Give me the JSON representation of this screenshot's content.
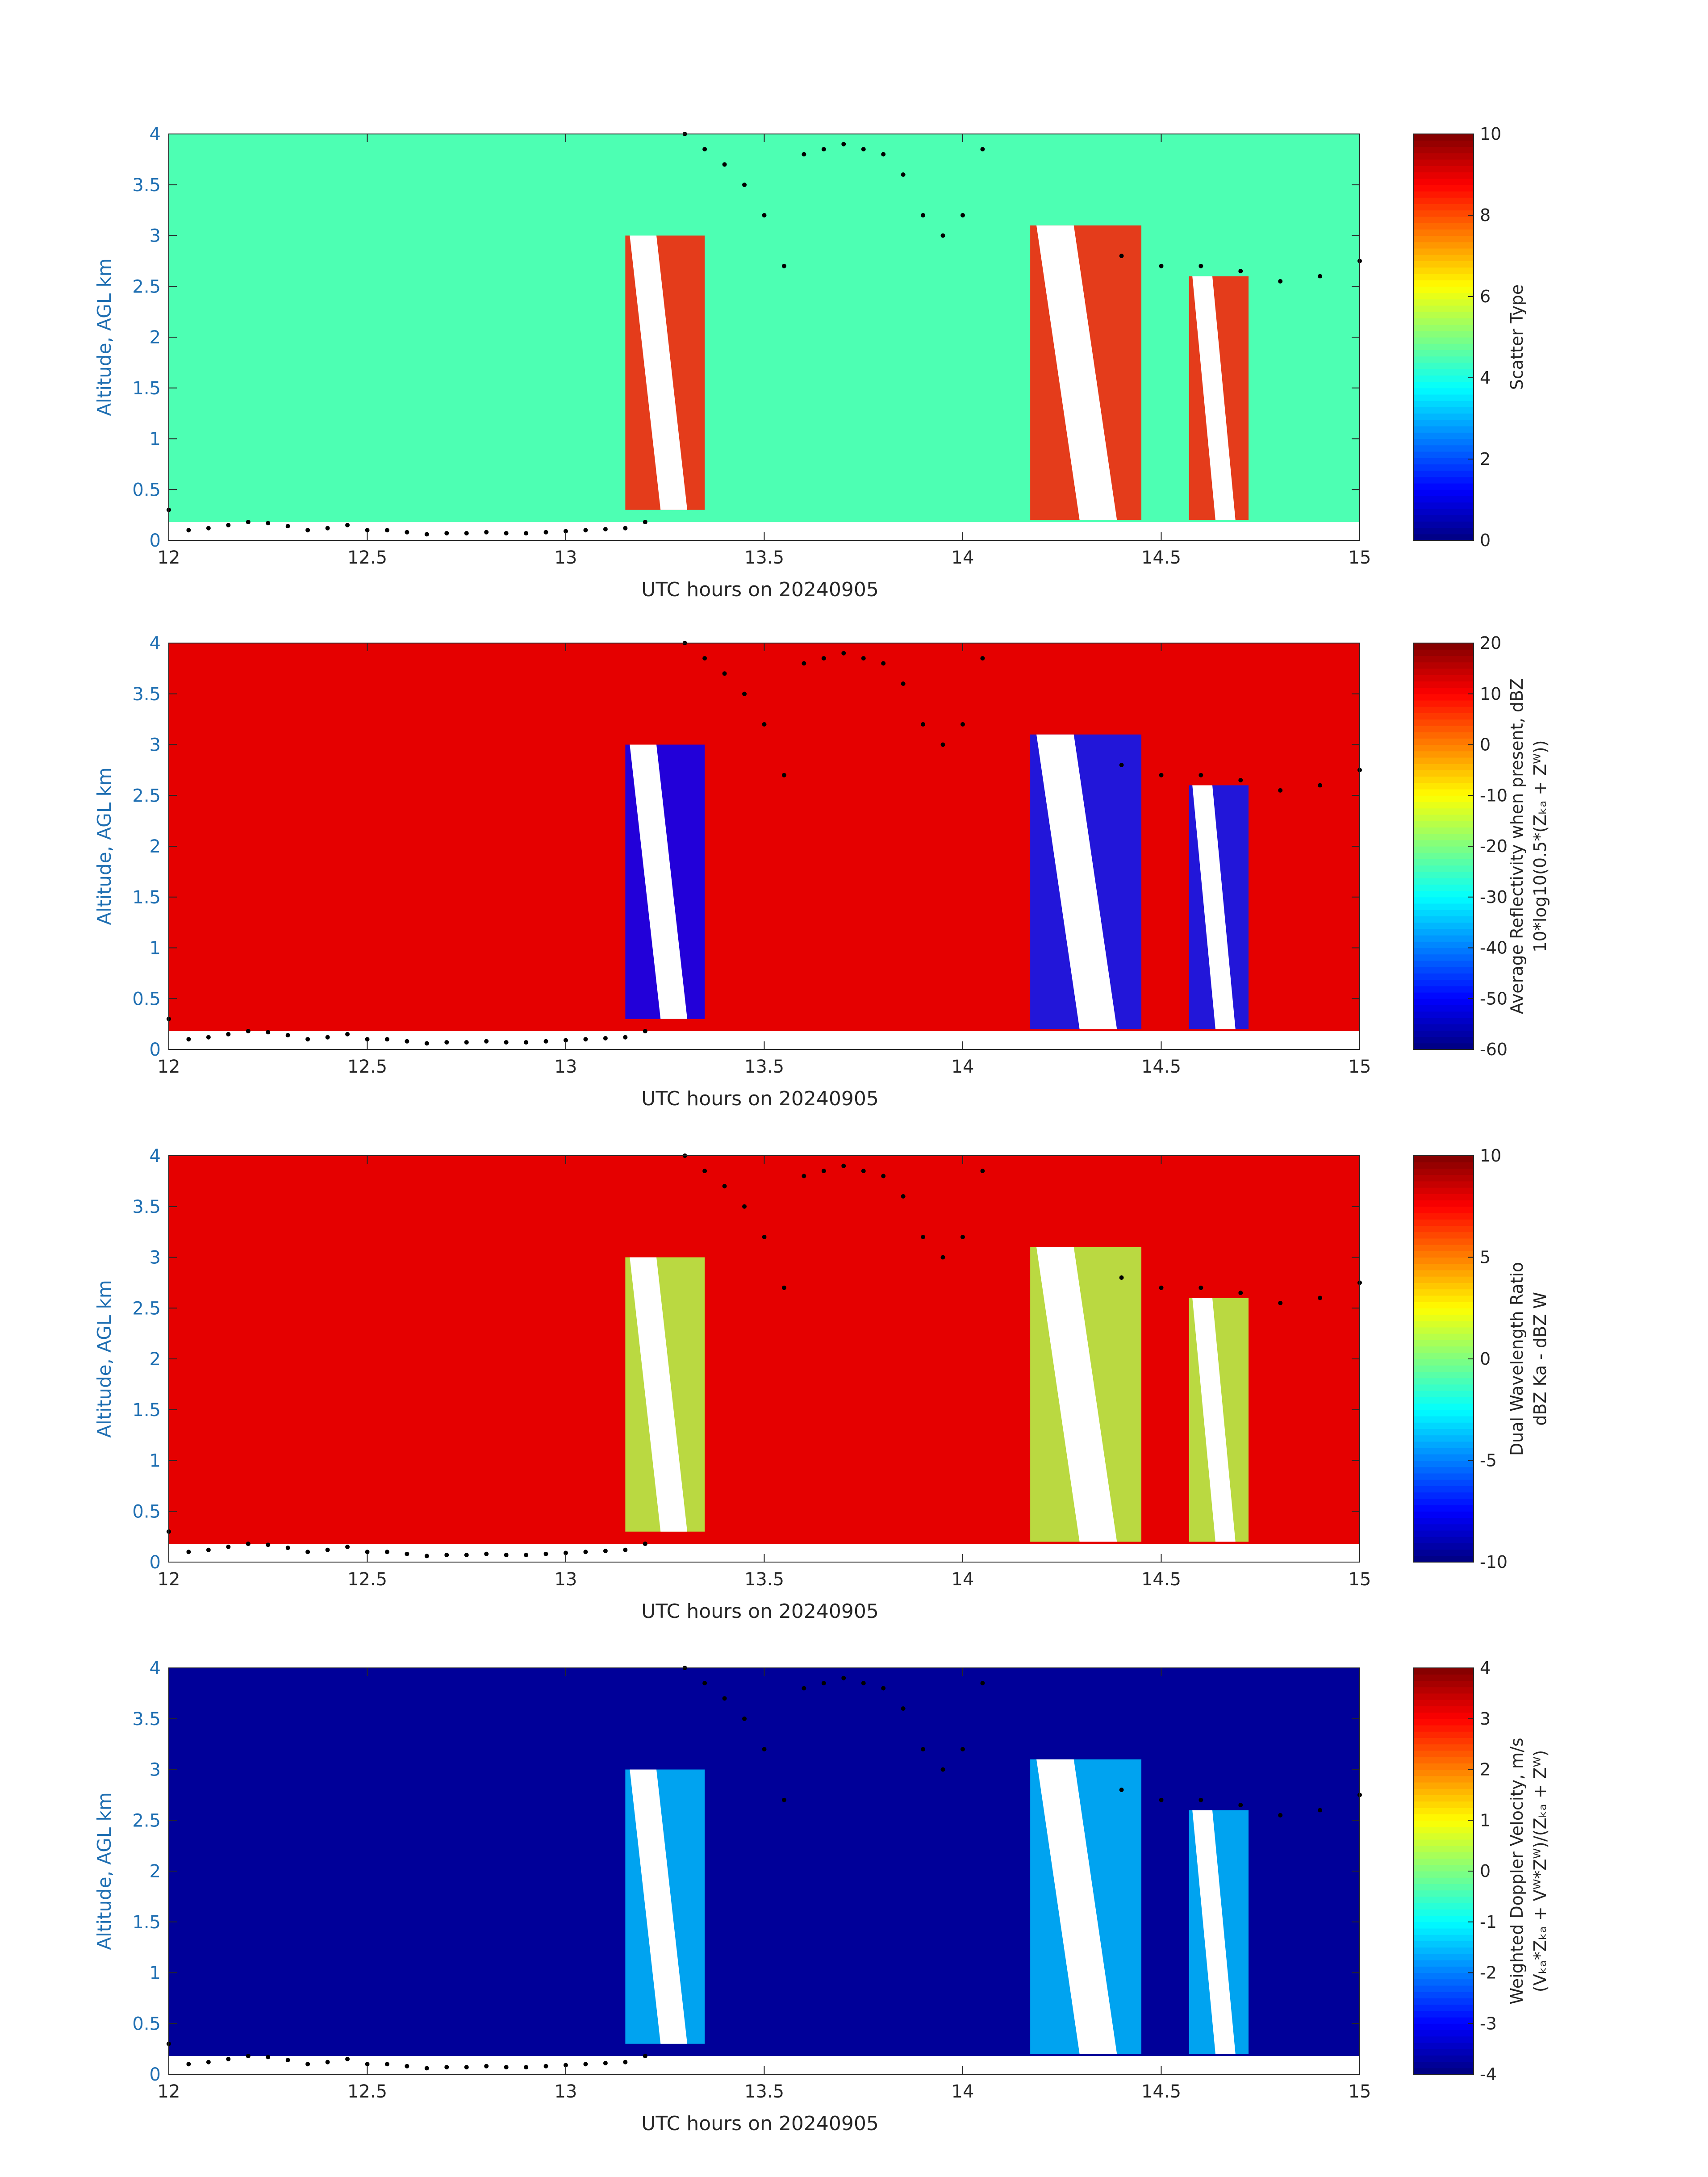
{
  "chart_data": [
    {
      "type": "heatmap",
      "field": "scatter_type",
      "xlabel": "UTC hours on 20240905",
      "ylabel": "Altitude, AGL km",
      "xlim": [
        12,
        15
      ],
      "ylim": [
        0,
        4
      ],
      "xticks": [
        "12",
        "12.5",
        "13",
        "13.5",
        "14",
        "14.5",
        "15"
      ],
      "yticks": [
        "0",
        "0.5",
        "1",
        "1.5",
        "2",
        "2.5",
        "3",
        "3.5",
        "4"
      ],
      "colorbar": {
        "label_lines": [
          "Scatter Type"
        ],
        "range": [
          0,
          10
        ],
        "ticks": [
          "0",
          "2",
          "4",
          "6",
          "8",
          "10"
        ]
      },
      "background_value": 4.5,
      "features": [
        {
          "kind": "cloud",
          "x0": 13.15,
          "x1": 13.35,
          "ybot": 0.3,
          "ytop": 3.0,
          "value": 8.5
        },
        {
          "kind": "cloud",
          "x0": 14.17,
          "x1": 14.45,
          "ybot": 0.2,
          "ytop": 3.1,
          "value": 8.5
        },
        {
          "kind": "cloud",
          "x0": 14.57,
          "x1": 14.72,
          "ybot": 0.2,
          "ytop": 2.6,
          "value": 8.5
        }
      ]
    },
    {
      "type": "heatmap",
      "field": "average_reflectivity",
      "xlabel": "UTC hours on 20240905",
      "ylabel": "Altitude, AGL km",
      "xlim": [
        12,
        15
      ],
      "ylim": [
        0,
        4
      ],
      "xticks": [
        "12",
        "12.5",
        "13",
        "13.5",
        "14",
        "14.5",
        "15"
      ],
      "yticks": [
        "0",
        "0.5",
        "1",
        "1.5",
        "2",
        "2.5",
        "3",
        "3.5",
        "4"
      ],
      "colorbar": {
        "label_lines": [
          "Average Reflectivity when present, dBZ",
          "10*log10(0.5*(Zₖₐ + Zᵂ))"
        ],
        "range": [
          -60,
          20
        ],
        "ticks": [
          "-60",
          "-50",
          "-40",
          "-30",
          "-20",
          "-10",
          "0",
          "10",
          "20"
        ]
      },
      "background_value": 12,
      "features": [
        {
          "kind": "cloud",
          "x0": 13.15,
          "x1": 13.35,
          "ybot": 0.3,
          "ytop": 3.0,
          "value": -50
        },
        {
          "kind": "cloud",
          "x0": 14.17,
          "x1": 14.45,
          "ybot": 0.2,
          "ytop": 3.1,
          "value": -48
        },
        {
          "kind": "cloud",
          "x0": 14.57,
          "x1": 14.72,
          "ybot": 0.2,
          "ytop": 2.6,
          "value": -48
        }
      ]
    },
    {
      "type": "heatmap",
      "field": "dual_wavelength_ratio",
      "xlabel": "UTC hours on 20240905",
      "ylabel": "Altitude, AGL km",
      "xlim": [
        12,
        15
      ],
      "ylim": [
        0,
        4
      ],
      "xticks": [
        "12",
        "12.5",
        "13",
        "13.5",
        "14",
        "14.5",
        "15"
      ],
      "yticks": [
        "0",
        "0.5",
        "1",
        "1.5",
        "2",
        "2.5",
        "3",
        "3.5",
        "4"
      ],
      "colorbar": {
        "label_lines": [
          "Dual Wavelength Ratio",
          "dBZ Ka - dBZ W"
        ],
        "range": [
          -10,
          10
        ],
        "ticks": [
          "-10",
          "-5",
          "0",
          "5",
          "10"
        ]
      },
      "background_value": 8,
      "features": [
        {
          "kind": "cloud",
          "x0": 13.15,
          "x1": 13.35,
          "ybot": 0.3,
          "ytop": 3.0,
          "value": 1
        },
        {
          "kind": "cloud",
          "x0": 14.17,
          "x1": 14.45,
          "ybot": 0.2,
          "ytop": 3.1,
          "value": 1
        },
        {
          "kind": "cloud",
          "x0": 14.57,
          "x1": 14.72,
          "ybot": 0.2,
          "ytop": 2.6,
          "value": 1
        }
      ]
    },
    {
      "type": "heatmap",
      "field": "weighted_doppler_velocity",
      "xlabel": "UTC hours on 20240905",
      "ylabel": "Altitude, AGL km",
      "xlim": [
        12,
        15
      ],
      "ylim": [
        0,
        4
      ],
      "xticks": [
        "12",
        "12.5",
        "13",
        "13.5",
        "14",
        "14.5",
        "15"
      ],
      "yticks": [
        "0",
        "0.5",
        "1",
        "1.5",
        "2",
        "2.5",
        "3",
        "3.5",
        "4"
      ],
      "colorbar": {
        "label_lines": [
          "Weighted Doppler Velocity, m/s",
          "(Vₖₐ*Zₖₐ + Vᵂ*Zᵂ)/(Zₖₐ + Zᵂ)"
        ],
        "range": [
          -4,
          4
        ],
        "ticks": [
          "-4",
          "-3",
          "-2",
          "-1",
          "0",
          "1",
          "2",
          "3",
          "4"
        ]
      },
      "background_value": -3.8,
      "features": [
        {
          "kind": "cloud",
          "x0": 13.15,
          "x1": 13.35,
          "ybot": 0.3,
          "ytop": 3.0,
          "value": -1.5
        },
        {
          "kind": "cloud",
          "x0": 14.17,
          "x1": 14.45,
          "ybot": 0.2,
          "ytop": 3.1,
          "value": -1.5
        },
        {
          "kind": "cloud",
          "x0": 14.57,
          "x1": 14.72,
          "ybot": 0.2,
          "ytop": 2.6,
          "value": -1.5
        }
      ]
    }
  ],
  "cloud_boundary_points": {
    "series": "black dots",
    "x": [
      12.0,
      12.05,
      12.1,
      12.15,
      12.2,
      12.25,
      12.3,
      12.35,
      12.4,
      12.45,
      12.5,
      12.55,
      12.6,
      12.65,
      12.7,
      12.75,
      12.8,
      12.85,
      12.9,
      12.95,
      13.0,
      13.05,
      13.1,
      13.15,
      13.2,
      13.3,
      13.35,
      13.4,
      13.45,
      13.5,
      13.55,
      13.6,
      13.65,
      13.7,
      13.75,
      13.8,
      13.85,
      13.9,
      13.95,
      14.0,
      14.05,
      14.4,
      14.5,
      14.6,
      14.7,
      14.8,
      14.9,
      15.0
    ],
    "y": [
      0.3,
      0.1,
      0.12,
      0.15,
      0.18,
      0.17,
      0.14,
      0.1,
      0.12,
      0.15,
      0.1,
      0.1,
      0.08,
      0.06,
      0.07,
      0.07,
      0.08,
      0.07,
      0.07,
      0.08,
      0.09,
      0.1,
      0.11,
      0.12,
      0.18,
      4.0,
      3.85,
      3.7,
      3.5,
      3.2,
      2.7,
      3.8,
      3.85,
      3.9,
      3.85,
      3.8,
      3.6,
      3.2,
      3.0,
      3.2,
      3.85,
      2.8,
      2.7,
      2.7,
      2.65,
      2.55,
      2.6,
      2.75
    ]
  }
}
